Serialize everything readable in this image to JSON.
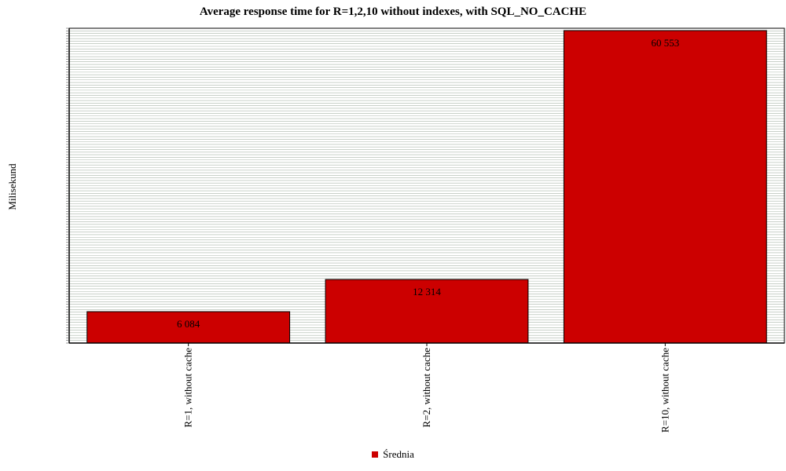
{
  "chart_data": {
    "type": "bar",
    "title": "Average response time for R=1,2,10 without indexes, with SQL_NO_CACHE",
    "xlabel": "",
    "ylabel": "Milisekund",
    "categories": [
      "R=1, without cache",
      "R=2, without cache",
      "R=10, without cache"
    ],
    "series": [
      {
        "name": "Średnia",
        "values": [
          6084,
          12314,
          60553
        ]
      }
    ],
    "value_labels": [
      "6 084",
      "12 314",
      "60 553"
    ],
    "ylim": [
      0,
      61000
    ],
    "ytick_step": 500,
    "ytick_labels": [],
    "grid": true,
    "legend_position": "bottom-center",
    "colors": {
      "bar": "#cc0000",
      "grid": "#a8b4a8",
      "plot_bg": "#ffffff"
    }
  }
}
